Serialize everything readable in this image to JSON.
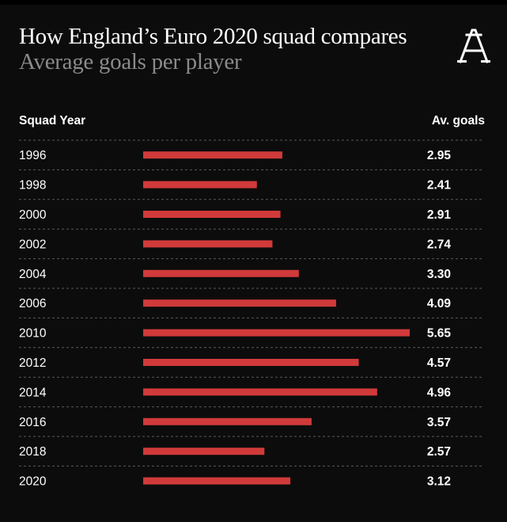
{
  "header": {
    "title": "How England’s Euro 2020 squad compares",
    "subtitle": "Average goals per player"
  },
  "table": {
    "left_heading": "Squad Year",
    "right_heading": "Av. goals"
  },
  "brand": {
    "logo_icon": "athletic-a-logo-icon",
    "logo_color": "#ffffff"
  },
  "colors": {
    "bar": "#d13a3a",
    "background": "#0c0c0c",
    "divider": "#5a5a5a"
  },
  "chart_data": {
    "type": "bar",
    "orientation": "horizontal",
    "title": "How England’s Euro 2020 squad compares",
    "subtitle": "Average goals per player",
    "categories": [
      "1996",
      "1998",
      "2000",
      "2002",
      "2004",
      "2006",
      "2010",
      "2012",
      "2014",
      "2016",
      "2018",
      "2020"
    ],
    "values": [
      2.95,
      2.41,
      2.91,
      2.74,
      3.3,
      4.09,
      5.65,
      4.57,
      4.96,
      3.57,
      2.57,
      3.12
    ],
    "value_labels": [
      "2.95",
      "2.41",
      "2.91",
      "2.74",
      "3.30",
      "4.09",
      "5.65",
      "4.57",
      "4.96",
      "3.57",
      "2.57",
      "3.12"
    ],
    "xlim": [
      0,
      5.65
    ],
    "grid": "dashed row dividers",
    "legend": "none"
  }
}
